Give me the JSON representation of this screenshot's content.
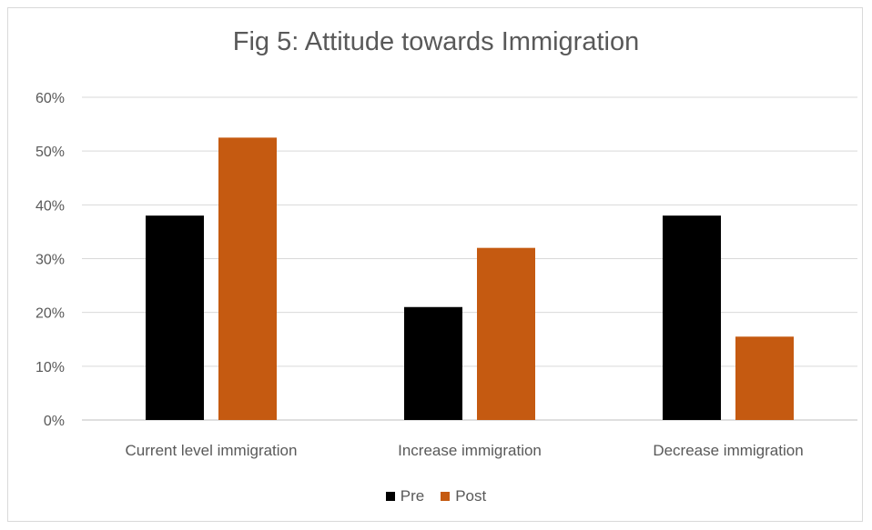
{
  "chart_data": {
    "type": "bar",
    "title": "Fig 5: Attitude towards Immigration",
    "xlabel": "",
    "ylabel": "",
    "ylim": [
      0,
      60
    ],
    "yticks": [
      "0%",
      "10%",
      "20%",
      "30%",
      "40%",
      "50%",
      "60%"
    ],
    "grid": true,
    "legend_position": "bottom",
    "categories": [
      "Current level immigration",
      "Increase immigration",
      "Decrease immigration"
    ],
    "series": [
      {
        "name": "Pre",
        "color": "#000000",
        "values": [
          38,
          21,
          38
        ]
      },
      {
        "name": "Post",
        "color": "#c55a11",
        "values": [
          52.5,
          32,
          15.5
        ]
      }
    ]
  }
}
